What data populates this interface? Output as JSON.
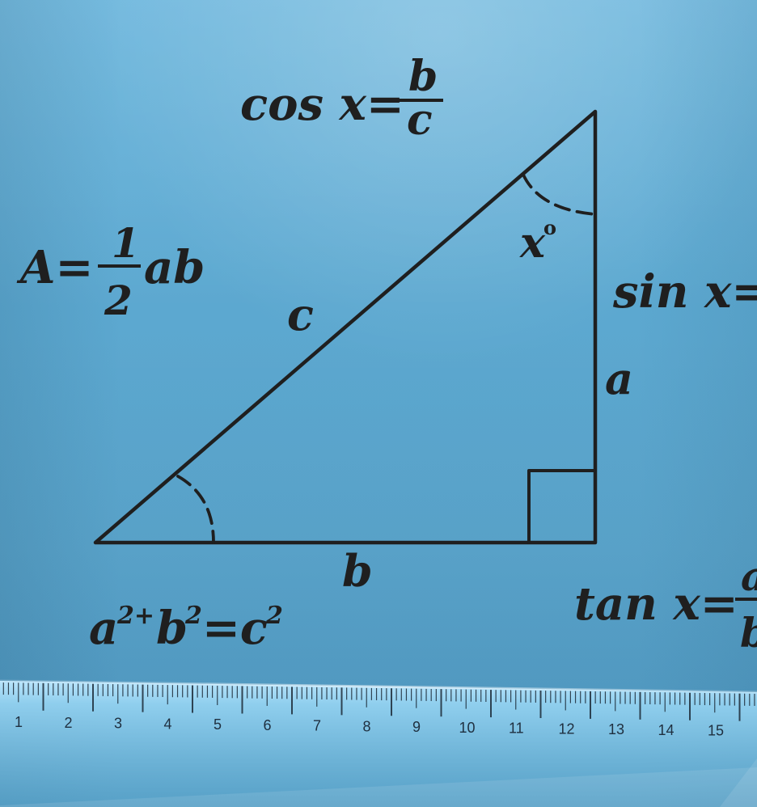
{
  "diagram": {
    "formulas": {
      "cos_prefix": "cos x=",
      "cos_numerator": "b",
      "cos_denominator": "c",
      "area_prefix": "A=",
      "area_numerator": "1",
      "area_denominator": "2",
      "area_suffix": "ab",
      "sin_prefix": "sin x=",
      "tan_prefix": "tan x=",
      "tan_numerator_partial": "a",
      "tan_denominator_partial": "b",
      "pythag_a": "a",
      "pythag_a_exp": "2+",
      "pythag_b": "b",
      "pythag_b_exp": "2",
      "pythag_equals_c": "=c",
      "pythag_c_exp": "2"
    },
    "labels": {
      "hypotenuse": "c",
      "vertical_side": "a",
      "base": "b",
      "angle": "x",
      "degree": "o"
    },
    "ruler_ticks": [
      "1",
      "2",
      "3",
      "4",
      "5",
      "6",
      "7",
      "8",
      "9",
      "10",
      "11",
      "12",
      "13",
      "14",
      "15"
    ],
    "colors": {
      "background": "#5fa9cf",
      "ink": "#1f1f1f",
      "ruler": "#8fd0f0"
    }
  }
}
